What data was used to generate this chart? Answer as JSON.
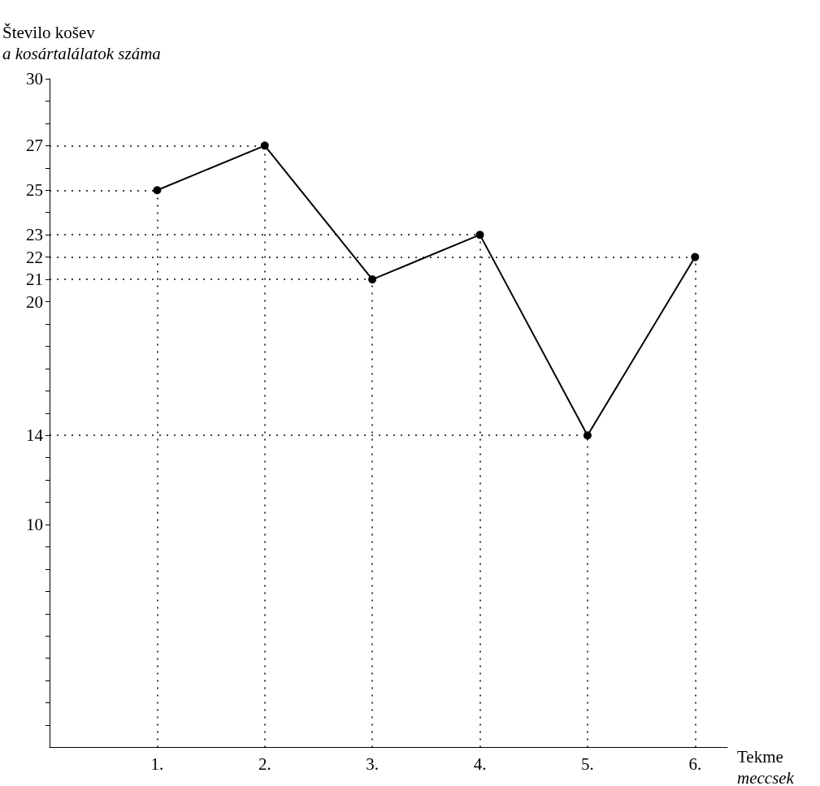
{
  "chart_data": {
    "type": "line",
    "ylabel": "Število košev\na kosártalálatok száma",
    "xlabel": "Tekme\nmeccsek",
    "x": [
      1,
      2,
      3,
      4,
      5,
      6
    ],
    "series": [
      {
        "color": "#000000",
        "values": [
          25,
          27,
          21,
          23,
          14,
          22
        ]
      }
    ],
    "xlim": [
      0,
      6.3
    ],
    "xticks": [
      {
        "value": 1,
        "label": "1."
      },
      {
        "value": 2,
        "label": "2."
      },
      {
        "value": 3,
        "label": "3."
      },
      {
        "value": 4,
        "label": "4."
      },
      {
        "value": 5,
        "label": "5."
      },
      {
        "value": 6,
        "label": "6."
      }
    ],
    "ylim": [
      0,
      30
    ],
    "yticks": [
      {
        "value": 1,
        "label": null
      },
      {
        "value": 2,
        "label": null
      },
      {
        "value": 3,
        "label": null
      },
      {
        "value": 4,
        "label": null
      },
      {
        "value": 5,
        "label": null
      },
      {
        "value": 6,
        "label": null
      },
      {
        "value": 7,
        "label": null
      },
      {
        "value": 8,
        "label": null
      },
      {
        "value": 9,
        "label": null
      },
      10,
      {
        "value": 11,
        "label": null
      },
      {
        "value": 12,
        "label": null
      },
      {
        "value": 13,
        "label": null
      },
      14,
      {
        "value": 15,
        "label": null
      },
      {
        "value": 16,
        "label": null
      },
      {
        "value": 17,
        "label": null
      },
      {
        "value": 18,
        "label": null
      },
      {
        "value": 19,
        "label": null
      },
      20,
      21,
      22,
      23,
      {
        "value": 24,
        "label": null
      },
      25,
      {
        "value": 26,
        "label": null
      },
      27,
      {
        "value": 28,
        "label": null
      },
      {
        "value": 29,
        "label": null
      },
      30
    ],
    "ref_lines": [
      {
        "axis": "y",
        "value": 27,
        "color": "#000000",
        "line_style": "dotted"
      },
      {
        "axis": "y",
        "value": 25,
        "color": "#000000",
        "line_style": "dotted"
      },
      {
        "axis": "y",
        "value": 23,
        "color": "#000000",
        "line_style": "dotted"
      },
      {
        "axis": "y",
        "value": 22,
        "color": "#000000",
        "line_style": "dotted"
      },
      {
        "axis": "y",
        "value": 21,
        "color": "#000000",
        "line_style": "dotted"
      },
      {
        "axis": "y",
        "value": 14,
        "color": "#000000",
        "line_style": "dotted"
      },
      {
        "axis": "x",
        "value": 1,
        "color": "#000000",
        "line_style": "dotted"
      },
      {
        "axis": "x",
        "value": 2,
        "color": "#000000",
        "line_style": "dotted"
      },
      {
        "axis": "x",
        "value": 3,
        "color": "#000000",
        "line_style": "dotted"
      },
      {
        "axis": "x",
        "value": 4,
        "color": "#000000",
        "line_style": "dotted"
      },
      {
        "axis": "x",
        "value": 5,
        "color": "#000000",
        "line_style": "dotted"
      },
      {
        "axis": "x",
        "value": 6,
        "color": "#000000",
        "line_style": "dotted"
      }
    ],
    "marker": "circle",
    "line_style": "solid"
  }
}
